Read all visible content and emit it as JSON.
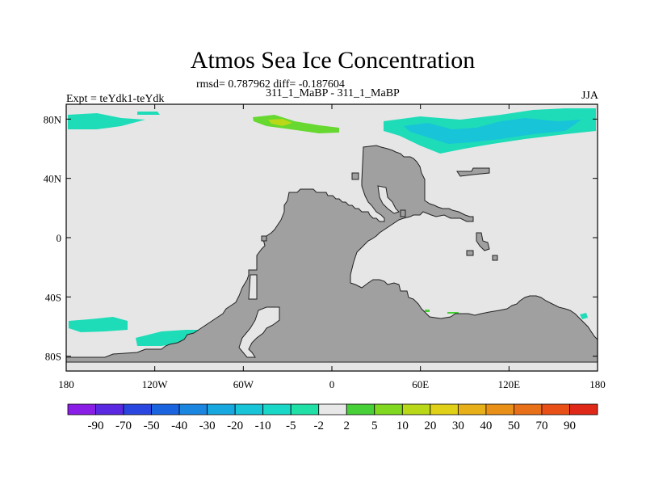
{
  "chart_data": {
    "type": "heatmap",
    "title": "Atmos Sea Ice Concentration",
    "subtitle_stats": "rmsd= 0.787962 diff= -0.187604",
    "subtitle_runs": "311_1_MaBP - 311_1_MaBP",
    "left_label": "Expt = teYdk1-teYdk",
    "right_label": "JJA",
    "x_ticks": [
      {
        "lon": -180,
        "label": "180"
      },
      {
        "lon": -120,
        "label": "120W"
      },
      {
        "lon": -60,
        "label": "60W"
      },
      {
        "lon": 0,
        "label": "0"
      },
      {
        "lon": 60,
        "label": "60E"
      },
      {
        "lon": 120,
        "label": "120E"
      },
      {
        "lon": 180,
        "label": "180"
      }
    ],
    "y_ticks": [
      {
        "lat": 80,
        "label": "80N"
      },
      {
        "lat": 40,
        "label": "40N"
      },
      {
        "lat": 0,
        "label": "0"
      },
      {
        "lat": -40,
        "label": "40S"
      },
      {
        "lat": -80,
        "label": "80S"
      }
    ],
    "xlim": [
      -180,
      180
    ],
    "ylim": [
      -90,
      90
    ],
    "colorbar": {
      "labels": [
        "-90",
        "-70",
        "-50",
        "-40",
        "-30",
        "-20",
        "-10",
        "-5",
        "-2",
        "2",
        "5",
        "10",
        "20",
        "30",
        "40",
        "50",
        "70",
        "90"
      ],
      "colors": [
        "#8a1ee6",
        "#5a28e0",
        "#2a46e0",
        "#1a64e0",
        "#1a86e0",
        "#18a8e0",
        "#18c4d8",
        "#1ad8c8",
        "#20e0a8",
        "#e8e8e8",
        "#48d038",
        "#80d820",
        "#b8d818",
        "#e0d018",
        "#e8b018",
        "#e89018",
        "#e87018",
        "#e85018",
        "#e02818"
      ]
    }
  }
}
